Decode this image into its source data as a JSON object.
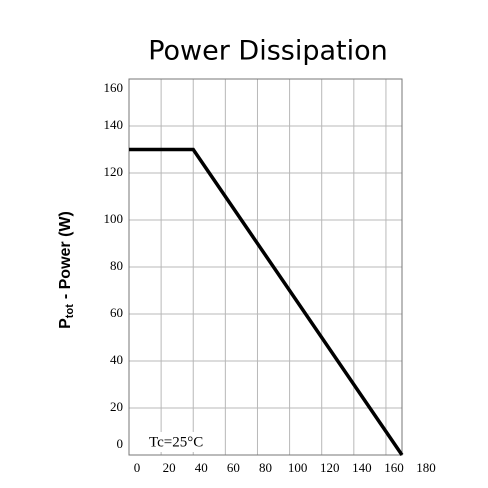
{
  "chart_data": {
    "type": "line",
    "title": "Power Dissipation",
    "ylabel": {
      "symbol": "P",
      "subscript": "tot",
      "text": "- Power (W)"
    },
    "annotation": "Tc=25°C",
    "x": [
      0,
      40,
      170
    ],
    "series": [
      {
        "color": "#000000",
        "values": [
          130,
          130,
          0
        ]
      }
    ],
    "xlim": [
      0,
      170
    ],
    "xticks": [
      0,
      20,
      40,
      60,
      80,
      100,
      120,
      140,
      160,
      180
    ],
    "ylim": [
      0,
      160
    ],
    "yticks": [
      0,
      20,
      40,
      60,
      80,
      100,
      120,
      140,
      160
    ],
    "grid": true
  }
}
